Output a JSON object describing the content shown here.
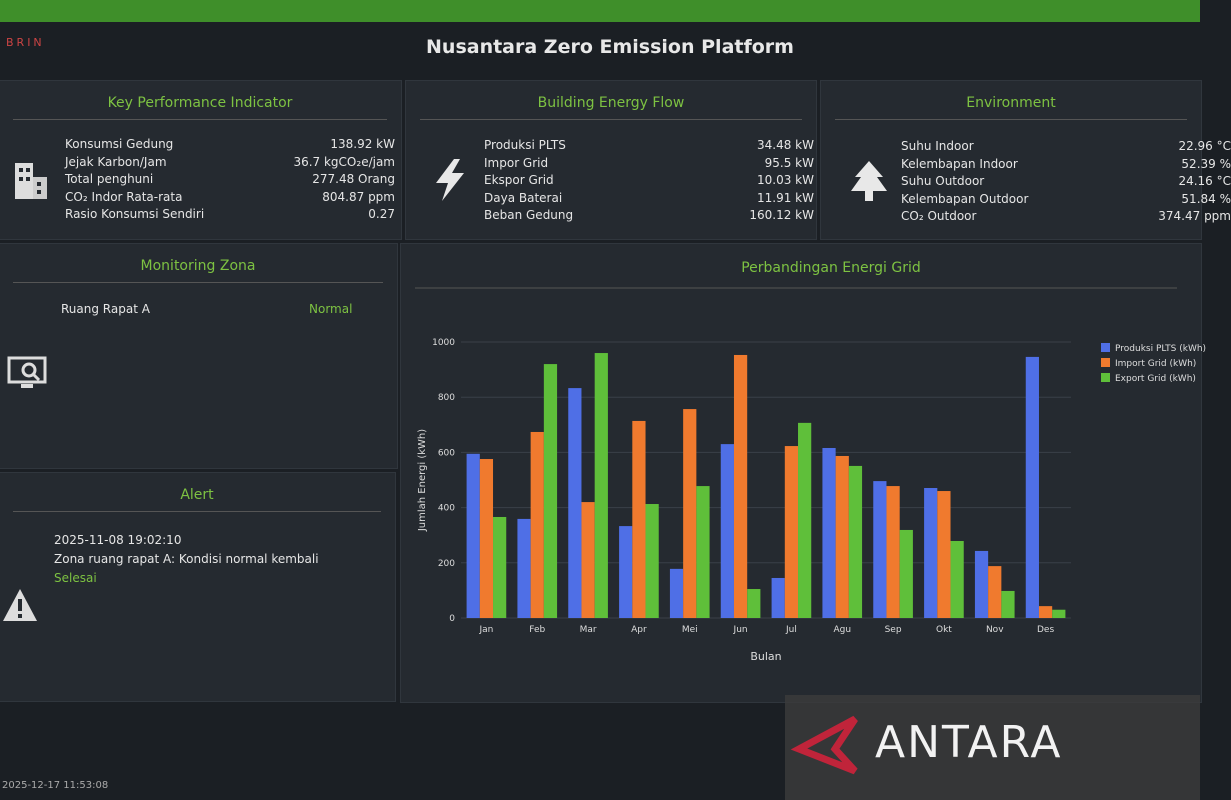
{
  "header": {
    "logo": "BRIN",
    "title": "Nusantara Zero Emission Platform"
  },
  "kpi": {
    "title": "Key Performance Indicator",
    "rows": [
      {
        "label": "Konsumsi Gedung",
        "value": "138.92 kW"
      },
      {
        "label": "Jejak Karbon/Jam",
        "value": "36.7 kgCO₂e/jam"
      },
      {
        "label": "Total penghuni",
        "value": "277.48 Orang"
      },
      {
        "label": "CO₂ Indor Rata-rata",
        "value": "804.87 ppm"
      },
      {
        "label": "Rasio Konsumsi Sendiri",
        "value": "0.27"
      }
    ]
  },
  "energy_flow": {
    "title": "Building Energy Flow",
    "rows": [
      {
        "label": "Produksi PLTS",
        "value": "34.48 kW"
      },
      {
        "label": "Impor Grid",
        "value": "95.5 kW"
      },
      {
        "label": "Ekspor Grid",
        "value": "10.03 kW"
      },
      {
        "label": "Daya Baterai",
        "value": "11.91 kW"
      },
      {
        "label": "Beban Gedung",
        "value": "160.12 kW"
      }
    ]
  },
  "environment": {
    "title": "Environment",
    "rows": [
      {
        "label": "Suhu Indoor",
        "value": "22.96 °C"
      },
      {
        "label": "Kelembapan Indoor",
        "value": "52.39 %"
      },
      {
        "label": "Suhu Outdoor",
        "value": "24.16 °C"
      },
      {
        "label": "Kelembapan Outdoor",
        "value": "51.84 %"
      },
      {
        "label": "CO₂ Outdoor",
        "value": "374.47 ppm"
      }
    ]
  },
  "monitoring": {
    "title": "Monitoring Zona",
    "zone": "Ruang Rapat A",
    "status": "Normal"
  },
  "alert": {
    "title": "Alert",
    "time": "2025-11-08 19:02:10",
    "message": "Zona ruang rapat A: Kondisi normal kembali",
    "status": "Selesai"
  },
  "footer": {
    "timestamp": "2025-12-17 11:53:08"
  },
  "watermark": "ANTARA",
  "chart_data": {
    "type": "bar",
    "title": "Perbandingan Energi Grid",
    "x_label": "Bulan",
    "y_label": "Jumlah Energi (kWh)",
    "categories": [
      "Jan",
      "Feb",
      "Mar",
      "Apr",
      "Mei",
      "Jun",
      "Jul",
      "Agu",
      "Sep",
      "Okt",
      "Nov",
      "Des"
    ],
    "series": [
      {
        "name": "Produksi PLTS (kWh)",
        "color": "#4f6fe6",
        "values": [
          595,
          359,
          833,
          333,
          178,
          630,
          145,
          616,
          496,
          471,
          243,
          946
        ]
      },
      {
        "name": "Import Grid (kWh)",
        "color": "#f07a2e",
        "values": [
          576,
          674,
          420,
          714,
          757,
          953,
          623,
          587,
          478,
          460,
          188,
          43
        ]
      },
      {
        "name": "Export Grid (kWh)",
        "color": "#5fbf3a",
        "values": [
          366,
          920,
          960,
          413,
          478,
          105,
          707,
          551,
          319,
          279,
          98,
          30
        ]
      }
    ],
    "ylim": [
      0,
      1000
    ],
    "yticks": [
      0,
      200,
      400,
      600,
      800,
      1000
    ],
    "grid": true,
    "legend": "top-right"
  }
}
